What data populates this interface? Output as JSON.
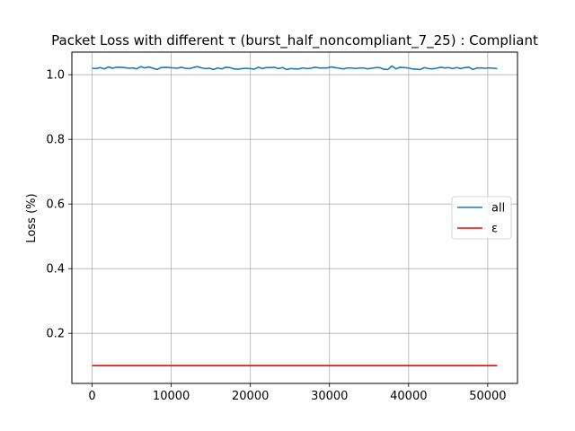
{
  "chart_data": {
    "type": "line",
    "title": "Packet Loss with different τ (burst_half_noncompliant_7_25) : Compliant",
    "xlabel": "",
    "ylabel": "Loss (%)",
    "xlim": [
      -2560,
      53760
    ],
    "ylim": [
      0.045,
      1.07
    ],
    "grid": true,
    "legend_position": "center-right",
    "x_ticks": [
      0,
      10000,
      20000,
      30000,
      40000,
      50000
    ],
    "x_tick_labels": [
      "0",
      "10000",
      "20000",
      "30000",
      "40000",
      "50000"
    ],
    "y_ticks": [
      0.2,
      0.4,
      0.6,
      0.8,
      1.0
    ],
    "y_tick_labels": [
      "0.2",
      "0.4",
      "0.6",
      "0.8",
      "1.0"
    ],
    "series": [
      {
        "name": "all",
        "color": "#1f77b4",
        "x": [
          0,
          512,
          1024,
          1536,
          2048,
          2560,
          3072,
          3584,
          4096,
          4608,
          5120,
          5632,
          6144,
          6656,
          7168,
          7680,
          8192,
          8704,
          9216,
          9728,
          10240,
          10752,
          11264,
          11776,
          12288,
          12800,
          13312,
          13824,
          14336,
          14848,
          15360,
          15872,
          16384,
          16896,
          17408,
          17920,
          18432,
          18944,
          19456,
          19968,
          20480,
          20992,
          21504,
          22016,
          22528,
          23040,
          23552,
          24064,
          24576,
          25088,
          25600,
          26112,
          26624,
          27136,
          27648,
          28160,
          28672,
          29184,
          29696,
          30208,
          30720,
          31232,
          31744,
          32256,
          32768,
          33280,
          33792,
          34304,
          34816,
          35328,
          35840,
          36352,
          36864,
          37376,
          37888,
          38400,
          38912,
          39424,
          39936,
          40448,
          40960,
          41472,
          41984,
          42496,
          43008,
          43520,
          44032,
          44544,
          45056,
          45568,
          46080,
          46592,
          47104,
          47616,
          48128,
          48640,
          49152,
          49664,
          50176,
          50688,
          51200
        ],
        "y": [
          1.02,
          1.019,
          1.022,
          1.018,
          1.024,
          1.02,
          1.023,
          1.023,
          1.022,
          1.02,
          1.021,
          1.018,
          1.025,
          1.021,
          1.024,
          1.02,
          1.016,
          1.022,
          1.023,
          1.022,
          1.021,
          1.02,
          1.023,
          1.02,
          1.019,
          1.022,
          1.025,
          1.021,
          1.019,
          1.02,
          1.016,
          1.021,
          1.018,
          1.023,
          1.022,
          1.018,
          1.017,
          1.019,
          1.02,
          1.019,
          1.017,
          1.023,
          1.019,
          1.022,
          1.022,
          1.023,
          1.019,
          1.022,
          1.016,
          1.019,
          1.018,
          1.018,
          1.021,
          1.019,
          1.02,
          1.023,
          1.021,
          1.021,
          1.021,
          1.024,
          1.022,
          1.02,
          1.018,
          1.021,
          1.021,
          1.019,
          1.021,
          1.021,
          1.018,
          1.02,
          1.022,
          1.022,
          1.017,
          1.016,
          1.027,
          1.018,
          1.023,
          1.022,
          1.021,
          1.018,
          1.017,
          1.016,
          1.022,
          1.019,
          1.018,
          1.02,
          1.023,
          1.021,
          1.022,
          1.019,
          1.022,
          1.019,
          1.022,
          1.023,
          1.016,
          1.021,
          1.021,
          1.02,
          1.021,
          1.02,
          1.019
        ]
      },
      {
        "name": "ε",
        "color": "#ff0000",
        "x": [
          0,
          51200
        ],
        "y": [
          0.1,
          0.1
        ]
      }
    ]
  }
}
